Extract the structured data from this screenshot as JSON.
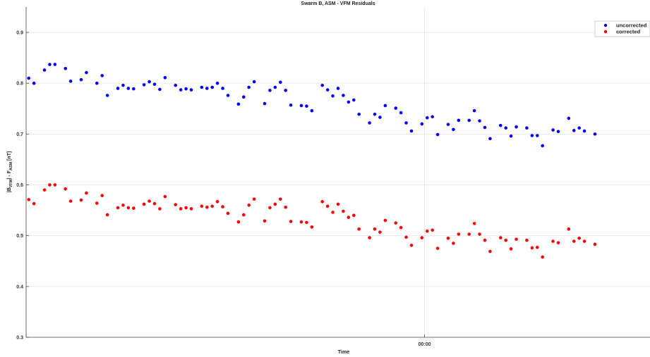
{
  "chart_data": {
    "type": "scatter",
    "title": "Swarm B, ASM - VFM Residuals",
    "xlabel": "Time",
    "ylabel_parts": {
      "open": "|B",
      "sub1": "VFM",
      "mid": "| - F",
      "sub2": "ASM",
      "unit": " [nT]"
    },
    "ylim": [
      0.3,
      0.95
    ],
    "y_ticks": [
      0.3,
      0.4,
      0.5,
      0.6,
      0.7,
      0.8,
      0.9
    ],
    "x_ticks": [
      {
        "index": 75.5,
        "label": "00:00"
      }
    ],
    "xlim": [
      -0.5,
      118.5
    ],
    "grid": true,
    "legend_position": "top-right",
    "series": [
      {
        "name": "uncorrected",
        "color": "#0000ff",
        "values": [
          0.81,
          0.8,
          0.826,
          0.837,
          0.837,
          0.829,
          0.804,
          0.807,
          0.821,
          0.8,
          0.815,
          0.776,
          0.79,
          0.796,
          0.79,
          0.789,
          0.797,
          0.803,
          0.798,
          0.788,
          0.811,
          0.796,
          0.787,
          0.789,
          0.787,
          0.792,
          0.79,
          0.792,
          0.8,
          0.79,
          0.776,
          0.759,
          0.773,
          0.792,
          0.803,
          0.76,
          0.786,
          0.792,
          0.802,
          0.786,
          0.757,
          0.756,
          0.755,
          0.746,
          0.796,
          0.787,
          0.775,
          0.79,
          0.776,
          0.763,
          0.767,
          0.739,
          0.722,
          0.739,
          0.733,
          0.756,
          0.751,
          0.742,
          0.722,
          0.706,
          0.72,
          0.732,
          0.734,
          0.699,
          0.719,
          0.709,
          0.727,
          0.727,
          0.746,
          0.726,
          0.713,
          0.691,
          0.717,
          0.712,
          0.696,
          0.714,
          0.712,
          0.697,
          0.697,
          0.677,
          0.708,
          0.705,
          0.731,
          0.707,
          0.712,
          0.706,
          0.7
        ]
      },
      {
        "name": "corrected",
        "color": "#ff0000",
        "values": [
          0.571,
          0.563,
          0.59,
          0.6,
          0.6,
          0.592,
          0.568,
          0.57,
          0.584,
          0.564,
          0.579,
          0.541,
          0.555,
          0.56,
          0.555,
          0.554,
          0.562,
          0.568,
          0.563,
          0.553,
          0.577,
          0.561,
          0.553,
          0.555,
          0.553,
          0.558,
          0.556,
          0.558,
          0.567,
          0.557,
          0.544,
          0.527,
          0.541,
          0.56,
          0.572,
          0.529,
          0.555,
          0.562,
          0.572,
          0.556,
          0.528,
          0.527,
          0.526,
          0.517,
          0.567,
          0.558,
          0.546,
          0.562,
          0.548,
          0.536,
          0.54,
          0.513,
          0.496,
          0.513,
          0.507,
          0.53,
          0.525,
          0.516,
          0.497,
          0.481,
          0.496,
          0.509,
          0.511,
          0.475,
          0.495,
          0.485,
          0.503,
          0.503,
          0.524,
          0.503,
          0.491,
          0.469,
          0.496,
          0.491,
          0.474,
          0.493,
          0.491,
          0.476,
          0.477,
          0.458,
          0.489,
          0.486,
          0.513,
          0.489,
          0.495,
          0.489,
          0.483
        ]
      }
    ],
    "x_index": [
      0,
      1,
      3,
      4,
      5,
      7,
      8,
      10,
      11,
      13,
      14,
      15,
      17,
      18,
      19,
      20,
      22,
      23,
      24,
      25,
      26,
      28,
      29,
      30,
      31,
      33,
      34,
      35,
      36,
      37,
      38,
      40,
      41,
      42,
      43,
      45,
      46,
      47,
      48,
      49,
      50,
      52,
      53,
      54,
      56,
      57,
      58,
      59,
      60,
      61,
      62,
      63,
      65,
      66,
      67,
      68,
      70,
      71,
      72,
      73,
      75,
      76,
      77,
      78,
      80,
      81,
      82,
      84,
      85,
      86,
      87,
      88,
      90,
      91,
      92,
      93,
      95,
      96,
      97,
      98,
      100,
      101,
      103,
      104,
      105,
      106,
      108
    ]
  }
}
